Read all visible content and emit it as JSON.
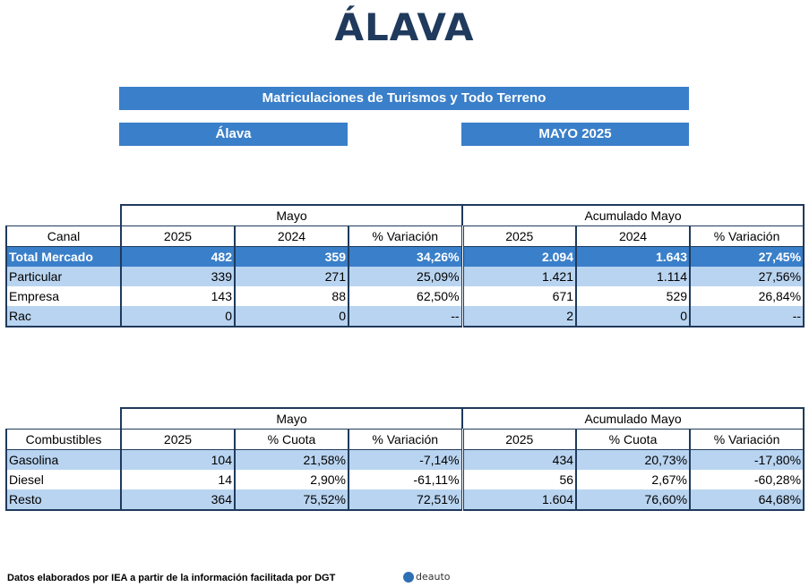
{
  "title": "ÁLAVA",
  "bands": {
    "main": "Matriculaciones de Turismos y Todo Terreno",
    "region": "Álava",
    "period": "MAYO 2025"
  },
  "table1": {
    "group1": "Mayo",
    "group2": "Acumulado Mayo",
    "headers": [
      "Canal",
      "2025",
      "2024",
      "% Variación",
      "2025",
      "2024",
      "% Variación"
    ],
    "rows": [
      [
        "Total Mercado",
        "482",
        "359",
        "34,26%",
        "2.094",
        "1.643",
        "27,45%"
      ],
      [
        "Particular",
        "339",
        "271",
        "25,09%",
        "1.421",
        "1.114",
        "27,56%"
      ],
      [
        "Empresa",
        "143",
        "88",
        "62,50%",
        "671",
        "529",
        "26,84%"
      ],
      [
        "Rac",
        "0",
        "0",
        "--",
        "2",
        "0",
        "--"
      ]
    ]
  },
  "table2": {
    "group1": "Mayo",
    "group2": "Acumulado Mayo",
    "headers": [
      "Combustibles",
      "2025",
      "% Cuota",
      "% Variación",
      "2025",
      "% Cuota",
      "% Variación"
    ],
    "rows": [
      [
        "Gasolina",
        "104",
        "21,58%",
        "-7,14%",
        "434",
        "20,73%",
        "-17,80%"
      ],
      [
        "Diesel",
        "14",
        "2,90%",
        "-61,11%",
        "56",
        "2,67%",
        "-60,28%"
      ],
      [
        "Resto",
        "364",
        "75,52%",
        "72,51%",
        "1.604",
        "76,60%",
        "64,68%"
      ]
    ]
  },
  "footer": {
    "source": "Datos elaborados por IEA a partir de la información facilitada por DGT",
    "logo_text": "deauto"
  }
}
